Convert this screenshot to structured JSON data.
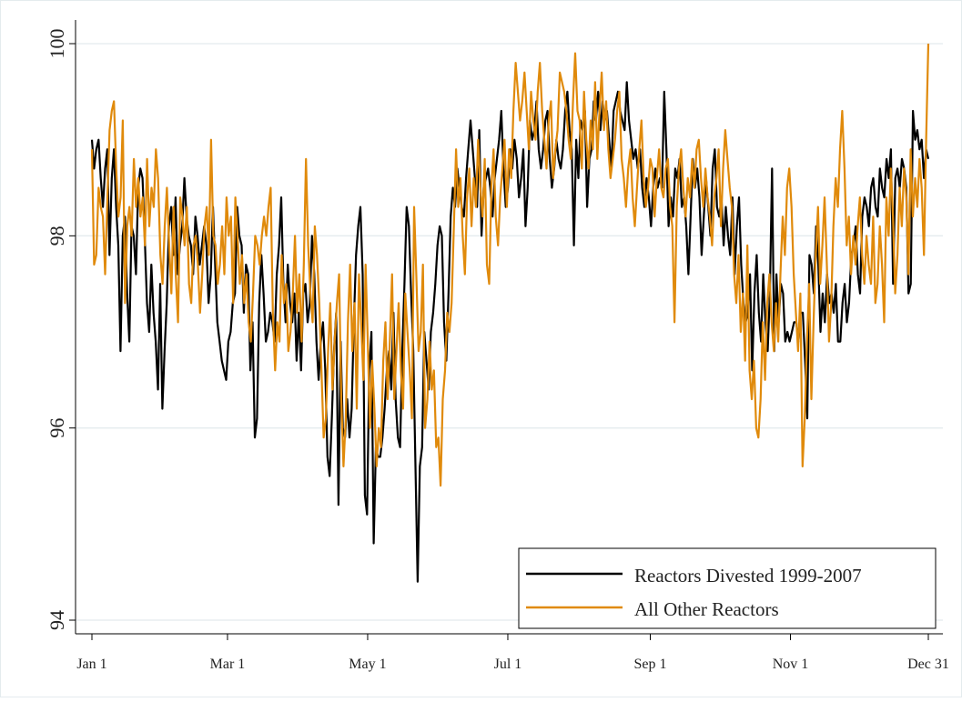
{
  "chart_data": {
    "type": "line",
    "title": "",
    "xlabel": "",
    "ylabel": "",
    "ylim": [
      94,
      100
    ],
    "xlim_days": [
      1,
      365
    ],
    "x_ticks": [
      {
        "label": "Jan 1",
        "day": 1
      },
      {
        "label": "Mar 1",
        "day": 60
      },
      {
        "label": "May 1",
        "day": 121
      },
      {
        "label": "Jul 1",
        "day": 182
      },
      {
        "label": "Sep 1",
        "day": 244
      },
      {
        "label": "Nov 1",
        "day": 305
      },
      {
        "label": "Dec 31",
        "day": 365
      }
    ],
    "y_ticks": [
      94,
      96,
      98,
      100
    ],
    "grid": "horizontal",
    "legend_position": "bottom-right",
    "series": [
      {
        "name": "Reactors Divested 1999-2007",
        "color": "#000000",
        "values": [
          99.0,
          98.7,
          98.9,
          99.0,
          98.6,
          98.3,
          98.7,
          98.9,
          97.8,
          98.6,
          98.9,
          98.3,
          97.9,
          96.8,
          98.0,
          98.2,
          97.4,
          96.9,
          98.1,
          98.0,
          97.6,
          98.5,
          98.7,
          98.6,
          98.0,
          97.3,
          97.0,
          97.7,
          97.2,
          96.9,
          96.4,
          97.5,
          96.2,
          96.8,
          97.3,
          98.1,
          98.3,
          97.8,
          98.4,
          97.6,
          97.9,
          98.1,
          98.6,
          98.2,
          98.0,
          97.9,
          97.6,
          98.2,
          98.0,
          97.7,
          97.9,
          98.1,
          97.9,
          97.3,
          97.6,
          98.3,
          97.7,
          97.1,
          96.9,
          96.7,
          96.6,
          96.5,
          96.9,
          97.0,
          97.3,
          97.4,
          98.3,
          98.0,
          97.9,
          97.2,
          97.7,
          97.6,
          96.6,
          97.1,
          95.9,
          96.1,
          97.3,
          97.8,
          97.4,
          96.9,
          97.0,
          97.2,
          97.1,
          96.9,
          97.6,
          97.9,
          98.4,
          97.5,
          97.1,
          97.7,
          97.3,
          97.1,
          97.4,
          96.7,
          97.2,
          96.6,
          97.4,
          97.5,
          97.1,
          97.3,
          98.0,
          97.6,
          96.9,
          96.5,
          96.9,
          97.1,
          96.6,
          95.7,
          95.5,
          96.1,
          96.8,
          97.2,
          95.2,
          96.9,
          96.0,
          95.9,
          96.3,
          95.9,
          96.2,
          97.1,
          97.8,
          98.1,
          98.3,
          97.6,
          95.3,
          95.1,
          96.6,
          97.0,
          94.8,
          95.8,
          95.7,
          95.7,
          95.9,
          96.2,
          96.6,
          96.8,
          96.4,
          97.2,
          96.3,
          95.9,
          95.8,
          96.8,
          97.5,
          98.3,
          98.1,
          97.4,
          96.8,
          95.6,
          94.4,
          95.6,
          95.8,
          97.0,
          96.7,
          96.4,
          97.0,
          97.2,
          97.5,
          97.9,
          98.1,
          98.0,
          97.1,
          96.7,
          97.4,
          98.2,
          98.5,
          98.3,
          98.7,
          98.5,
          98.3,
          98.2,
          98.6,
          98.9,
          99.2,
          98.9,
          98.6,
          98.3,
          99.1,
          98.0,
          98.5,
          98.6,
          98.7,
          98.5,
          98.2,
          98.6,
          98.8,
          99.0,
          99.3,
          98.7,
          98.3,
          98.5,
          98.9,
          98.7,
          99.0,
          98.8,
          98.4,
          98.6,
          98.9,
          98.1,
          98.5,
          99.2,
          99.0,
          99.1,
          99.4,
          98.9,
          98.7,
          98.9,
          99.2,
          99.3,
          98.8,
          98.5,
          98.7,
          99.0,
          98.8,
          98.7,
          98.9,
          99.3,
          99.5,
          99.1,
          98.9,
          97.9,
          99.0,
          98.6,
          99.2,
          99.1,
          99.3,
          98.3,
          98.8,
          98.9,
          99.4,
          99.2,
          99.5,
          99.1,
          99.4,
          99.2,
          99.3,
          99.0,
          98.7,
          99.3,
          99.4,
          99.5,
          99.3,
          99.2,
          99.1,
          99.6,
          99.2,
          99.0,
          98.8,
          98.9,
          98.7,
          98.9,
          98.5,
          98.3,
          98.6,
          98.4,
          98.1,
          98.5,
          98.7,
          98.5,
          98.6,
          98.5,
          99.5,
          98.9,
          98.1,
          98.4,
          98.2,
          98.7,
          98.6,
          98.8,
          98.3,
          98.4,
          98.1,
          97.6,
          98.2,
          98.8,
          98.5,
          98.7,
          98.4,
          97.8,
          98.2,
          98.6,
          98.3,
          98.0,
          98.7,
          98.9,
          98.3,
          98.2,
          98.4,
          97.9,
          98.3,
          98.0,
          97.8,
          98.4,
          97.6,
          98.1,
          98.4,
          97.7,
          97.3,
          97.1,
          97.2,
          97.6,
          96.6,
          97.4,
          97.8,
          97.2,
          96.9,
          97.6,
          97.1,
          96.8,
          97.4,
          98.7,
          96.8,
          97.6,
          97.1,
          97.5,
          97.4,
          96.9,
          97.0,
          96.9,
          97.0,
          97.1,
          97.1,
          96.9,
          97.2,
          97.2,
          96.7,
          96.1,
          97.8,
          97.7,
          97.4,
          98.1,
          97.7,
          97.0,
          97.4,
          97.1,
          97.6,
          97.3,
          97.4,
          97.2,
          97.5,
          96.9,
          96.9,
          97.3,
          97.5,
          97.1,
          97.3,
          97.8,
          97.9,
          98.1,
          97.6,
          97.4,
          98.2,
          98.4,
          98.3,
          98.1,
          98.5,
          98.6,
          98.3,
          98.2,
          98.7,
          98.5,
          98.4,
          98.8,
          98.6,
          98.9,
          97.5,
          98.6,
          98.7,
          98.5,
          98.8,
          98.7,
          98.5,
          97.4,
          97.5,
          99.3,
          99.0,
          99.1,
          98.9,
          99.0,
          98.6,
          98.9,
          98.8
        ]
      },
      {
        "name": "All Other Reactors",
        "color": "#E08A0B",
        "values": [
          98.9,
          97.7,
          97.8,
          98.5,
          98.3,
          98.2,
          97.6,
          98.4,
          99.1,
          99.3,
          99.4,
          98.7,
          98.2,
          98.4,
          99.2,
          97.3,
          98.1,
          98.3,
          98.0,
          98.8,
          98.3,
          98.6,
          98.2,
          98.4,
          97.9,
          98.8,
          98.1,
          98.5,
          98.3,
          98.9,
          98.6,
          97.8,
          97.5,
          98.1,
          98.5,
          97.9,
          97.4,
          98.3,
          97.6,
          97.1,
          98.4,
          98.2,
          97.9,
          98.3,
          97.5,
          97.3,
          97.9,
          98.0,
          97.7,
          97.2,
          97.6,
          98.1,
          98.3,
          97.8,
          99.0,
          98.0,
          97.9,
          97.5,
          97.7,
          98.1,
          97.6,
          98.4,
          98.0,
          98.2,
          97.3,
          98.4,
          98.0,
          97.5,
          97.8,
          97.3,
          97.6,
          97.1,
          96.9,
          97.4,
          98.0,
          97.9,
          97.7,
          98.0,
          98.2,
          98.0,
          98.3,
          98.5,
          97.2,
          96.6,
          97.1,
          96.9,
          97.8,
          97.3,
          97.5,
          96.8,
          97.0,
          97.4,
          98.0,
          97.2,
          97.6,
          96.9,
          97.7,
          98.8,
          97.9,
          97.4,
          97.1,
          98.1,
          97.8,
          97.3,
          96.6,
          95.9,
          96.1,
          96.8,
          97.3,
          96.4,
          96.9,
          97.3,
          97.6,
          96.3,
          95.6,
          96.1,
          97.1,
          97.7,
          96.8,
          97.3,
          96.2,
          97.6,
          97.1,
          96.5,
          97.7,
          96.9,
          96.0,
          96.7,
          96.2,
          95.6,
          96.0,
          95.8,
          96.7,
          97.1,
          96.3,
          96.9,
          97.6,
          96.3,
          96.8,
          97.3,
          96.6,
          96.2,
          97.4,
          97.0,
          96.6,
          96.1,
          98.3,
          97.6,
          96.8,
          97.0,
          97.7,
          96.0,
          96.3,
          96.9,
          96.4,
          96.6,
          95.8,
          95.9,
          95.4,
          96.3,
          96.6,
          97.2,
          97.0,
          97.3,
          98.1,
          98.9,
          98.3,
          98.6,
          98.0,
          97.6,
          98.4,
          98.7,
          98.1,
          98.6,
          98.3,
          99.0,
          98.5,
          98.2,
          98.8,
          97.7,
          97.5,
          98.5,
          98.9,
          98.2,
          97.9,
          98.4,
          98.7,
          99.0,
          98.3,
          98.9,
          98.6,
          99.3,
          99.8,
          99.5,
          99.2,
          99.4,
          99.7,
          99.3,
          98.9,
          99.5,
          99.2,
          99.0,
          99.5,
          99.8,
          99.3,
          99.0,
          98.7,
          99.2,
          99.4,
          98.6,
          98.9,
          99.1,
          99.7,
          99.6,
          99.5,
          99.3,
          99.0,
          98.8,
          99.4,
          99.9,
          99.3,
          99.2,
          98.7,
          99.5,
          99.0,
          98.7,
          99.2,
          98.9,
          99.6,
          98.8,
          99.3,
          99.7,
          99.1,
          99.4,
          98.9,
          98.6,
          98.8,
          99.0,
          99.3,
          99.5,
          98.8,
          98.6,
          98.3,
          98.7,
          98.9,
          98.4,
          98.1,
          98.5,
          98.9,
          99.2,
          98.6,
          98.3,
          98.5,
          98.8,
          98.7,
          98.2,
          98.6,
          98.9,
          98.5,
          98.4,
          98.7,
          98.8,
          98.3,
          98.1,
          97.1,
          98.3,
          98.7,
          98.9,
          98.5,
          98.2,
          98.6,
          98.4,
          98.8,
          98.5,
          98.9,
          99.0,
          98.6,
          98.3,
          98.7,
          98.4,
          98.2,
          97.9,
          98.4,
          98.6,
          98.9,
          98.1,
          98.7,
          99.1,
          98.8,
          98.5,
          98.3,
          97.6,
          97.3,
          97.8,
          97.0,
          97.4,
          96.7,
          97.9,
          96.6,
          96.3,
          96.7,
          96.0,
          95.9,
          96.3,
          97.1,
          96.5,
          97.3,
          97.6,
          97.1,
          96.8,
          97.3,
          96.9,
          97.6,
          98.2,
          97.8,
          98.5,
          98.7,
          98.3,
          97.6,
          97.2,
          96.8,
          97.4,
          95.6,
          96.1,
          96.9,
          97.5,
          96.3,
          97.1,
          97.8,
          98.3,
          97.5,
          97.9,
          98.4,
          97.7,
          96.9,
          97.3,
          98.1,
          98.6,
          98.3,
          98.9,
          99.3,
          98.7,
          97.9,
          98.2,
          97.6,
          98.0,
          97.7,
          98.1,
          98.4,
          97.8,
          97.5,
          98.0,
          97.7,
          97.5,
          98.2,
          97.3,
          97.5,
          98.1,
          97.7,
          97.1,
          98.4,
          98.0,
          98.7,
          98.2,
          97.4,
          97.8,
          98.5,
          98.1,
          98.7,
          98.4,
          97.6,
          98.9,
          98.2,
          98.6,
          98.3,
          98.8,
          98.5,
          97.8,
          99.0,
          100.0
        ]
      }
    ]
  }
}
